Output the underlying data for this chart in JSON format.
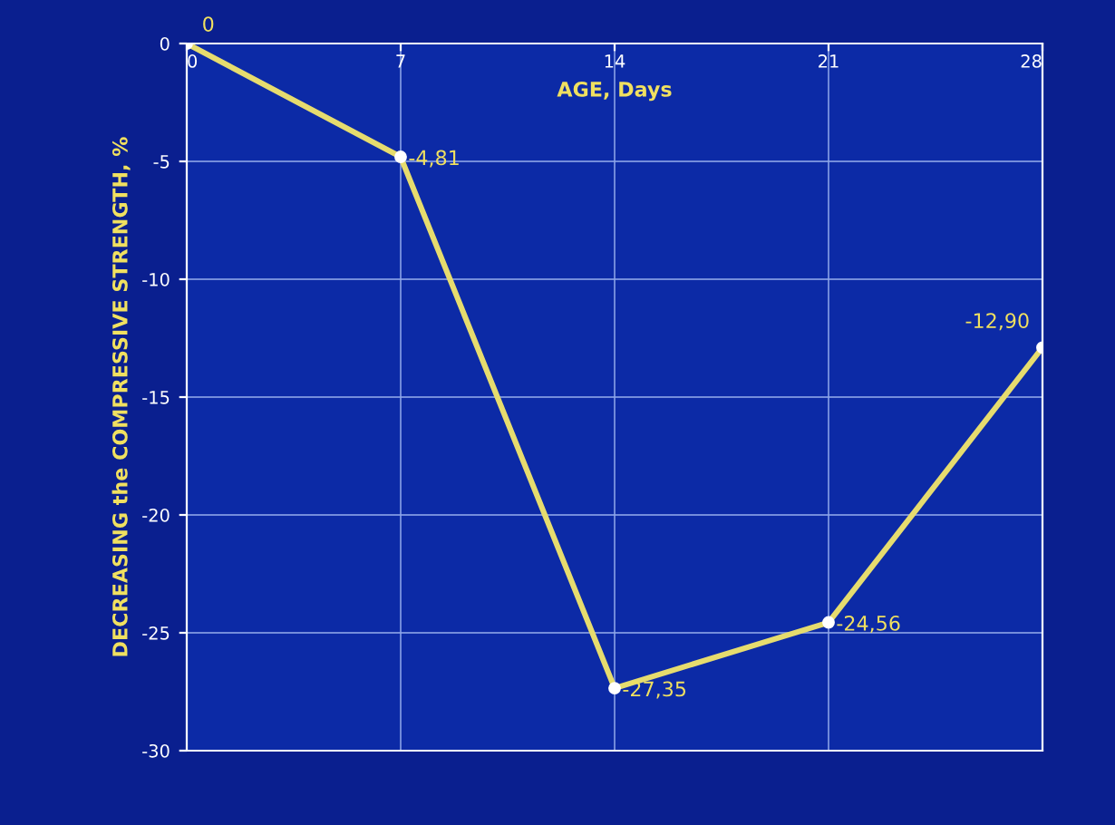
{
  "chart_data": {
    "type": "line",
    "xlabel": "AGE, Days",
    "ylabel": "DECREASING the COMPRESSIVE STRENGTH, %",
    "x": [
      0,
      7,
      14,
      21,
      28
    ],
    "series": [
      {
        "color": "#e6dc6e",
        "values": [
          0,
          -4.81,
          -27.35,
          -24.56,
          -12.9
        ],
        "value_labels": [
          "0",
          "-4,81",
          "-27,35",
          "-24,56",
          "-12,90"
        ]
      }
    ],
    "xlim": [
      0,
      28
    ],
    "xticks": [
      0,
      7,
      14,
      21,
      28
    ],
    "ylim": [
      -30,
      0
    ],
    "yticks": [
      0,
      -5,
      -10,
      -15,
      -20,
      -25,
      -30
    ],
    "grid": true,
    "marker": "circle",
    "line_style": "solid"
  }
}
